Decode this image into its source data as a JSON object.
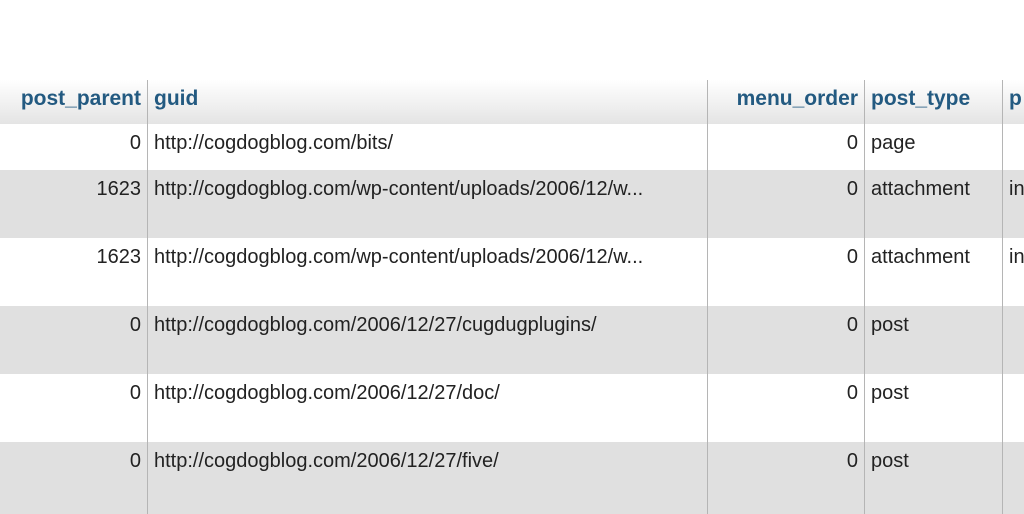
{
  "table": {
    "columns": [
      "post_parent",
      "guid",
      "menu_order",
      "post_type",
      "p"
    ],
    "rows": [
      {
        "post_parent": "0",
        "guid": "http://cogdogblog.com/bits/",
        "menu_order": "0",
        "post_type": "page",
        "p": ""
      },
      {
        "post_parent": "1623",
        "guid": "http://cogdogblog.com/wp-content/uploads/2006/12/w...",
        "menu_order": "0",
        "post_type": "attachment",
        "p": "in"
      },
      {
        "post_parent": "1623",
        "guid": "http://cogdogblog.com/wp-content/uploads/2006/12/w...",
        "menu_order": "0",
        "post_type": "attachment",
        "p": "in"
      },
      {
        "post_parent": "0",
        "guid": "http://cogdogblog.com/2006/12/27/cugdugplugins/",
        "menu_order": "0",
        "post_type": "post",
        "p": ""
      },
      {
        "post_parent": "0",
        "guid": "http://cogdogblog.com/2006/12/27/doc/",
        "menu_order": "0",
        "post_type": "post",
        "p": ""
      },
      {
        "post_parent": "0",
        "guid": "http://cogdogblog.com/2006/12/27/five/",
        "menu_order": "0",
        "post_type": "post",
        "p": ""
      }
    ]
  },
  "colors": {
    "header_text": "#235a81",
    "row_alt": "#e0e0e0"
  }
}
